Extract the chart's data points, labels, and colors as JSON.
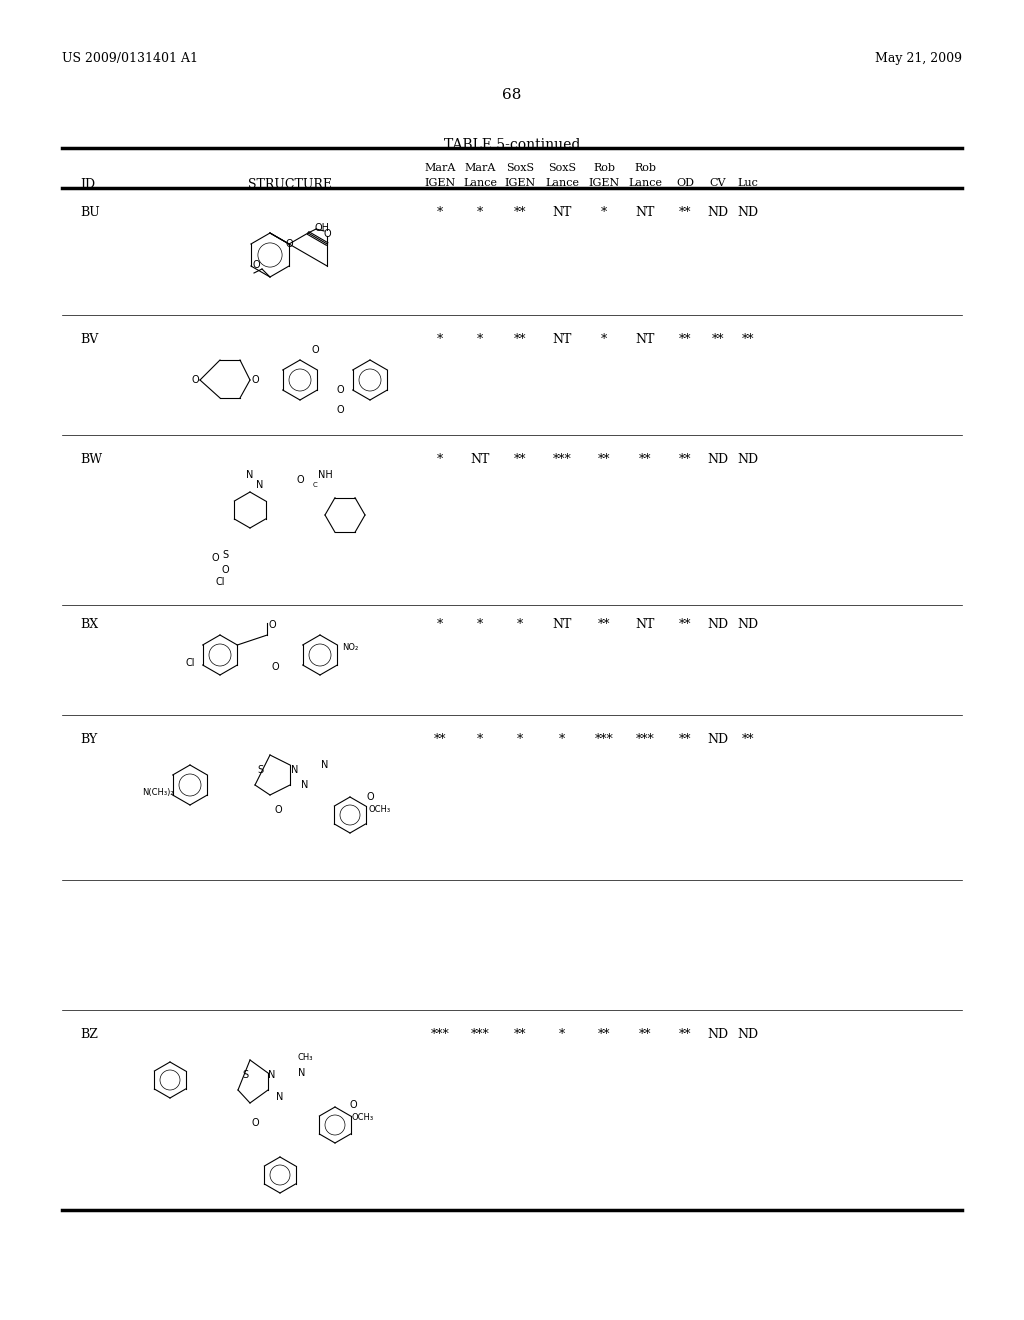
{
  "page_header_left": "US 2009/0131401 A1",
  "page_header_right": "May 21, 2009",
  "page_number": "68",
  "table_title": "TABLE 5-continued",
  "col_headers_row1": [
    "",
    "",
    "MarA",
    "MarA",
    "SoxS",
    "SoxS",
    "Rob",
    "Rob",
    "",
    "",
    ""
  ],
  "col_headers_row2": [
    "ID",
    "STRUCTURE",
    "IGEN",
    "Lance",
    "IGEN",
    "Lance",
    "IGEN",
    "Lance",
    "OD",
    "CV",
    "Luc"
  ],
  "rows": [
    {
      "id": "BU",
      "data": [
        "*",
        "*",
        "**",
        "NT",
        "*",
        "NT",
        "**",
        "ND",
        "ND"
      ]
    },
    {
      "id": "BV",
      "data": [
        "*",
        "*",
        "**",
        "NT",
        "*",
        "NT",
        "**",
        "**",
        "**"
      ]
    },
    {
      "id": "BW",
      "data": [
        "*",
        "NT",
        "**",
        "***",
        "**",
        "**",
        "**",
        "ND",
        "ND"
      ]
    },
    {
      "id": "BX",
      "data": [
        "*",
        "*",
        "*",
        "NT",
        "**",
        "NT",
        "**",
        "ND",
        "ND"
      ]
    },
    {
      "id": "BY",
      "data": [
        "**",
        "*",
        "*",
        "*",
        "***",
        "***",
        "**",
        "ND",
        "**"
      ]
    },
    {
      "id": "BZ",
      "data": [
        "***",
        "***",
        "**",
        "*",
        "**",
        "**",
        "**",
        "ND",
        "ND"
      ]
    }
  ],
  "background_color": "#ffffff",
  "text_color": "#000000",
  "font_size_header": 9,
  "font_size_body": 9,
  "font_size_title": 10,
  "font_size_page": 9
}
